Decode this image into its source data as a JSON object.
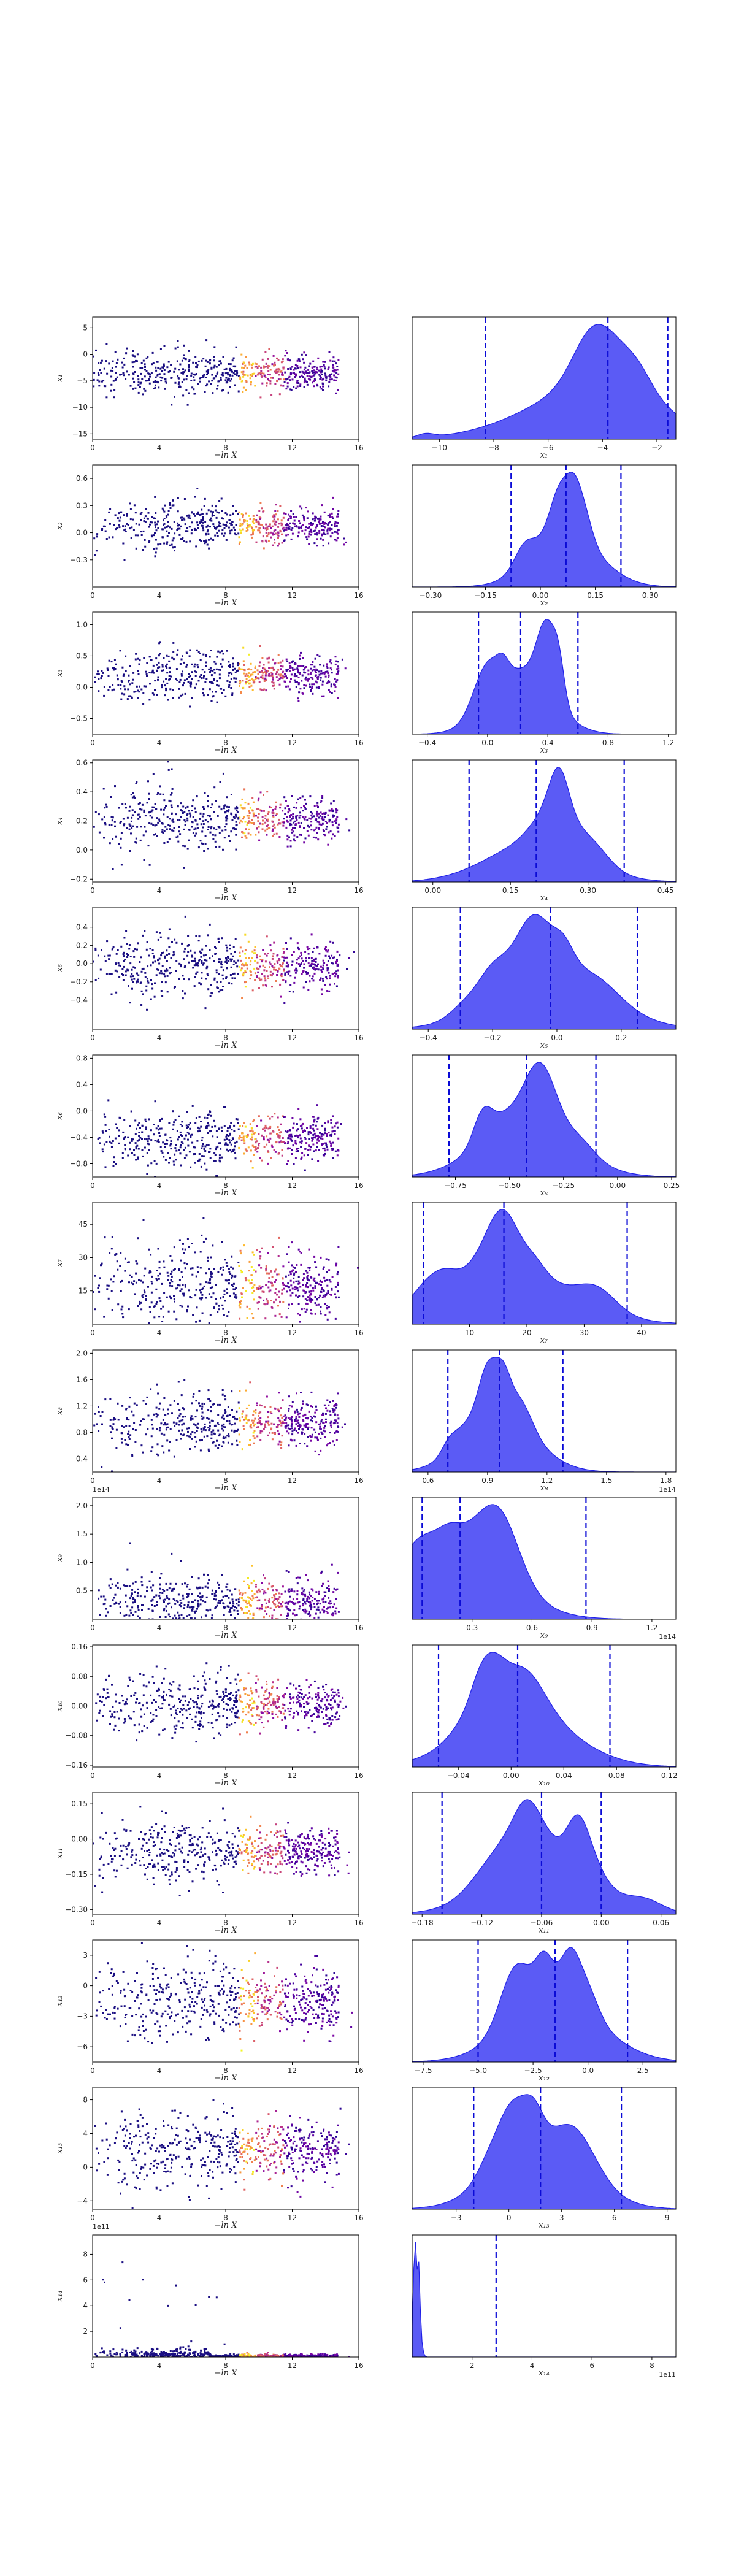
{
  "chart_data": {
    "type": "scatter",
    "layout": "dynesty trace plot: samples vs -ln X (left) and marginal posterior densities (right)",
    "colormap": "plasma",
    "scatter_color": "#1a0e82",
    "kde_fill": "#5b5bf5",
    "kde_edge": "#1f1fe6",
    "quantile_line_color": "#0b0bd6",
    "quantile_line_style": "dashed",
    "x_left": {
      "label": "−ln X",
      "lim": [
        0,
        16
      ],
      "ticks": [
        "0",
        "4",
        "8",
        "12",
        "16"
      ]
    },
    "rows": [
      {
        "name": "x₁",
        "ylim": [
          -16,
          7
        ],
        "yticks": [
          -15,
          -10,
          -5,
          0,
          5
        ],
        "ylabels": [
          "−15",
          "−10",
          "−5",
          "0",
          "5"
        ],
        "ymean": -3.5,
        "yspread": 2.0,
        "kde_xlim": [
          -11,
          -1.3
        ],
        "kde_xticks": [
          -10,
          -8,
          -6,
          -4,
          -2
        ],
        "kde_xlabels": [
          "−10",
          "−8",
          "−6",
          "−4",
          "−2"
        ],
        "quantiles": [
          -8.3,
          -3.8,
          -1.6
        ],
        "kde_xlabel": "x₁",
        "offset": ""
      },
      {
        "name": "x₂",
        "ylim": [
          -0.6,
          0.75
        ],
        "yticks": [
          -0.3,
          0.0,
          0.3,
          0.6
        ],
        "ylabels": [
          "−0.3",
          "0.0",
          "0.3",
          "0.6"
        ],
        "ymean": 0.08,
        "yspread": 0.12,
        "kde_xlim": [
          -0.35,
          0.37
        ],
        "kde_xticks": [
          -0.3,
          -0.15,
          0.0,
          0.15,
          0.3
        ],
        "kde_xlabels": [
          "−0.30",
          "−0.15",
          "0.00",
          "0.15",
          "0.30"
        ],
        "quantiles": [
          -0.08,
          0.07,
          0.22
        ],
        "kde_xlabel": "x₂",
        "offset": ""
      },
      {
        "name": "x₃",
        "ylim": [
          -0.75,
          1.2
        ],
        "yticks": [
          -0.5,
          0.0,
          0.5,
          1.0
        ],
        "ylabels": [
          "−0.5",
          "0.0",
          "0.5",
          "1.0"
        ],
        "ymean": 0.2,
        "yspread": 0.2,
        "kde_xlim": [
          -0.5,
          1.25
        ],
        "kde_xticks": [
          -0.4,
          0.0,
          0.4,
          0.8,
          1.2
        ],
        "kde_xlabels": [
          "−0.4",
          "0.0",
          "0.4",
          "0.8",
          "1.2"
        ],
        "quantiles": [
          -0.06,
          0.22,
          0.6
        ],
        "kde_xlabel": "x₃",
        "offset": ""
      },
      {
        "name": "x₄",
        "ylim": [
          -0.22,
          0.62
        ],
        "yticks": [
          -0.2,
          0.0,
          0.2,
          0.4,
          0.6
        ],
        "ylabels": [
          "−0.2",
          "0.0",
          "0.2",
          "0.4",
          "0.6"
        ],
        "ymean": 0.21,
        "yspread": 0.1,
        "kde_xlim": [
          -0.04,
          0.47
        ],
        "kde_xticks": [
          0.0,
          0.15,
          0.3,
          0.45
        ],
        "kde_xlabels": [
          "0.00",
          "0.15",
          "0.30",
          "0.45"
        ],
        "quantiles": [
          0.07,
          0.2,
          0.37
        ],
        "kde_xlabel": "x₄",
        "offset": ""
      },
      {
        "name": "x₅",
        "ylim": [
          -0.72,
          0.62
        ],
        "yticks": [
          -0.4,
          -0.2,
          0.0,
          0.2,
          0.4
        ],
        "ylabels": [
          "−0.4",
          "−0.2",
          "0.0",
          "0.2",
          "0.4"
        ],
        "ymean": -0.02,
        "yspread": 0.16,
        "kde_xlim": [
          -0.45,
          0.37
        ],
        "kde_xticks": [
          -0.4,
          -0.2,
          0.0,
          0.2
        ],
        "kde_xlabels": [
          "−0.4",
          "−0.2",
          "0.0",
          "0.2"
        ],
        "quantiles": [
          -0.3,
          -0.02,
          0.25
        ],
        "kde_xlabel": "x₅",
        "offset": ""
      },
      {
        "name": "x₆",
        "ylim": [
          -1.0,
          0.85
        ],
        "yticks": [
          -0.8,
          -0.4,
          0.0,
          0.4,
          0.8
        ],
        "ylabels": [
          "−0.8",
          "−0.4",
          "0.0",
          "0.4",
          "0.8"
        ],
        "ymean": -0.4,
        "yspread": 0.2,
        "kde_xlim": [
          -0.95,
          0.27
        ],
        "kde_xticks": [
          -0.75,
          -0.5,
          -0.25,
          0.0,
          0.25
        ],
        "kde_xlabels": [
          "−0.75",
          "−0.50",
          "−0.25",
          "0.00",
          "0.25"
        ],
        "quantiles": [
          -0.78,
          -0.42,
          -0.1
        ],
        "kde_xlabel": "x₆",
        "offset": ""
      },
      {
        "name": "x₇",
        "ylim": [
          0,
          55
        ],
        "yticks": [
          15,
          30,
          45
        ],
        "ylabels": [
          "15",
          "30",
          "45"
        ],
        "ymean": 17,
        "yspread": 10,
        "kde_xlim": [
          0,
          46
        ],
        "kde_xticks": [
          10,
          20,
          30,
          40
        ],
        "kde_xlabels": [
          "10",
          "20",
          "30",
          "40"
        ],
        "quantiles": [
          2.0,
          16.0,
          37.5
        ],
        "kde_xlabel": "x₇",
        "offset": ""
      },
      {
        "name": "x₈",
        "ylim": [
          0.2,
          2.05
        ],
        "yticks": [
          0.4,
          0.8,
          1.2,
          1.6,
          2.0
        ],
        "ylabels": [
          "0.4",
          "0.8",
          "1.2",
          "1.6",
          "2.0"
        ],
        "ymean": 0.95,
        "yspread": 0.22,
        "kde_xlim": [
          0.52,
          1.85
        ],
        "kde_xticks": [
          0.6,
          0.9,
          1.2,
          1.5,
          1.8
        ],
        "kde_xlabels": [
          "0.6",
          "0.9",
          "1.2",
          "1.5",
          "1.8"
        ],
        "quantiles": [
          0.7,
          0.96,
          1.28
        ],
        "kde_xlabel": "x₈",
        "offset": "1e14"
      },
      {
        "name": "x₉",
        "ylim": [
          0,
          2.15
        ],
        "yticks": [
          0.5,
          1.0,
          1.5,
          2.0
        ],
        "ylabels": [
          "0.5",
          "1.0",
          "1.5",
          "2.0"
        ],
        "ymean": 0.3,
        "yspread": 0.25,
        "kde_xlim": [
          0,
          1.32
        ],
        "kde_xticks": [
          0.3,
          0.6,
          0.9,
          1.2
        ],
        "kde_xlabels": [
          "0.3",
          "0.6",
          "0.9",
          "1.2"
        ],
        "quantiles": [
          0.05,
          0.24,
          0.87
        ],
        "kde_xlabel": "x₉",
        "offset": "1e14"
      },
      {
        "name": "x₁₀",
        "ylim": [
          -0.165,
          0.165
        ],
        "yticks": [
          -0.16,
          -0.08,
          0.0,
          0.08,
          0.16
        ],
        "ylabels": [
          "−0.16",
          "−0.08",
          "0.00",
          "0.08",
          "0.16"
        ],
        "ymean": 0.005,
        "yspread": 0.04,
        "kde_xlim": [
          -0.075,
          0.125
        ],
        "kde_xticks": [
          -0.04,
          0.0,
          0.04,
          0.08,
          0.12
        ],
        "kde_xlabels": [
          "−0.04",
          "0.00",
          "0.04",
          "0.08",
          "0.12"
        ],
        "quantiles": [
          -0.055,
          0.005,
          0.075
        ],
        "kde_xlabel": "x₁₀",
        "offset": ""
      },
      {
        "name": "x₁₁",
        "ylim": [
          -0.32,
          0.2
        ],
        "yticks": [
          -0.3,
          -0.15,
          0.0,
          0.15
        ],
        "ylabels": [
          "−0.30",
          "−0.15",
          "0.00",
          "0.15"
        ],
        "ymean": -0.05,
        "yspread": 0.06,
        "kde_xlim": [
          -0.19,
          0.075
        ],
        "kde_xticks": [
          -0.18,
          -0.12,
          -0.06,
          0.0,
          0.06
        ],
        "kde_xlabels": [
          "−0.18",
          "−0.12",
          "−0.06",
          "0.00",
          "0.06"
        ],
        "quantiles": [
          -0.16,
          -0.06,
          0.0
        ],
        "kde_xlabel": "x₁₁",
        "offset": ""
      },
      {
        "name": "x₁₂",
        "ylim": [
          -7.5,
          4.5
        ],
        "yticks": [
          -6,
          -3,
          0,
          3
        ],
        "ylabels": [
          "−6",
          "−3",
          "0",
          "3"
        ],
        "ymean": -1.5,
        "yspread": 2.0,
        "kde_xlim": [
          -8.0,
          4.0
        ],
        "kde_xticks": [
          -7.5,
          -5.0,
          -2.5,
          0.0,
          2.5
        ],
        "kde_xlabels": [
          "−7.5",
          "−5.0",
          "−2.5",
          "0.0",
          "2.5"
        ],
        "quantiles": [
          -5.0,
          -1.5,
          1.8
        ],
        "kde_xlabel": "x₁₂",
        "offset": ""
      },
      {
        "name": "x₁₃",
        "ylim": [
          -5,
          9.5
        ],
        "yticks": [
          -4,
          0,
          4,
          8
        ],
        "ylabels": [
          "−4",
          "0",
          "4",
          "8"
        ],
        "ymean": 2.0,
        "yspread": 2.2,
        "kde_xlim": [
          -5.5,
          9.5
        ],
        "kde_xticks": [
          -3,
          0,
          3,
          6,
          9
        ],
        "kde_xlabels": [
          "−3",
          "0",
          "3",
          "6",
          "9"
        ],
        "quantiles": [
          -2.0,
          1.8,
          6.4
        ],
        "kde_xlabel": "x₁₃",
        "offset": ""
      },
      {
        "name": "x₁₄",
        "ylim": [
          0,
          9.5
        ],
        "yticks": [
          2,
          4,
          6,
          8
        ],
        "ylabels": [
          "2",
          "4",
          "6",
          "8"
        ],
        "ymean": 0.15,
        "yspread": 0.3,
        "kde_xlim": [
          0,
          8.8
        ],
        "kde_xticks": [
          2,
          4,
          6,
          8
        ],
        "kde_xlabels": [
          "2",
          "4",
          "6",
          "8"
        ],
        "quantiles": [
          2.8
        ],
        "kde_xlabel": "x₁₄",
        "offset": "1e11"
      }
    ],
    "extra_offsets": {
      "row8_left": "1e14",
      "row13_left": "1e11"
    }
  }
}
